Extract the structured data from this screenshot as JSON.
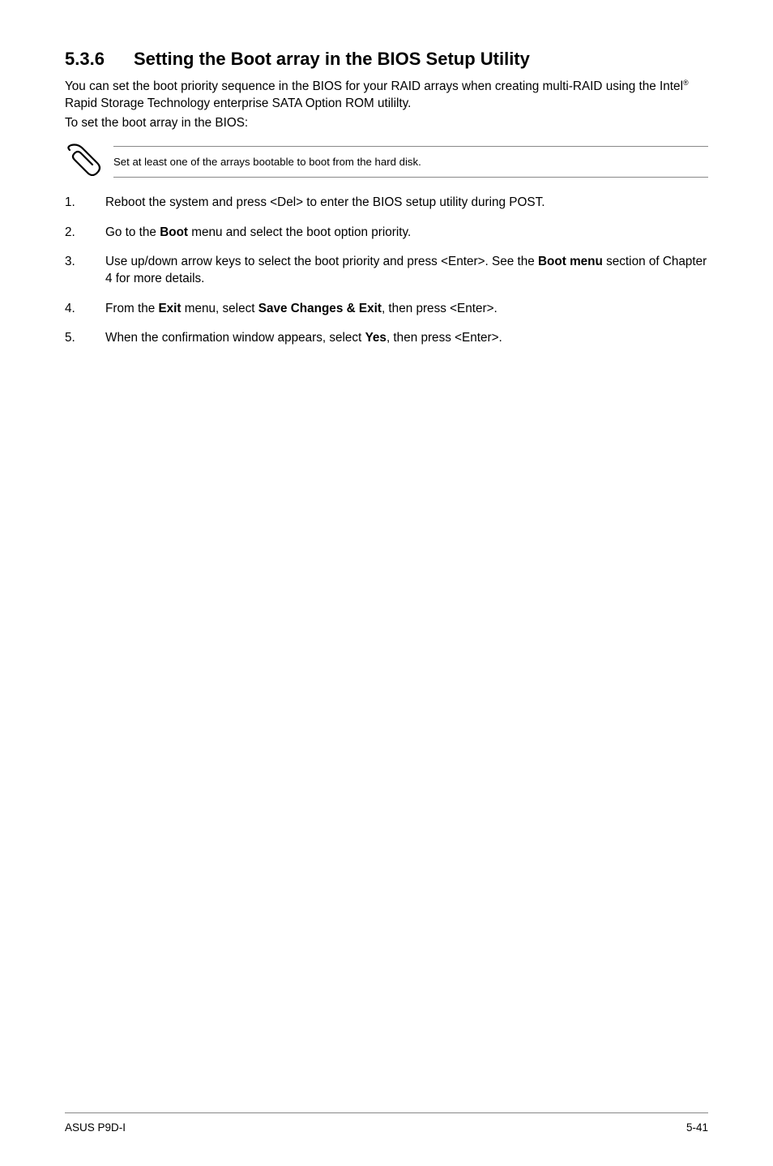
{
  "heading": {
    "number": "5.3.6",
    "title": "Setting the Boot array in the BIOS Setup Utility"
  },
  "intro": {
    "line1_pre": "You can set the boot priority sequence in the BIOS for your RAID arrays when creating multi-RAID using the Intel",
    "line1_post": " Rapid Storage Technology enterprise SATA Option ROM utililty.",
    "line2": "To set the boot array in the BIOS:"
  },
  "note": {
    "text": "Set at least one of the arrays bootable to boot from the hard disk."
  },
  "steps": [
    {
      "segments": [
        {
          "t": "Reboot the system and press <Del> to enter the BIOS setup utility during POST."
        }
      ]
    },
    {
      "segments": [
        {
          "t": "Go to the "
        },
        {
          "t": "Boot",
          "b": true
        },
        {
          "t": " menu and select the boot option priority."
        }
      ]
    },
    {
      "segments": [
        {
          "t": "Use up/down arrow keys to select the boot priority and press <Enter>. See the "
        },
        {
          "t": "Boot menu",
          "b": true
        },
        {
          "t": " section of Chapter 4 for more details."
        }
      ]
    },
    {
      "segments": [
        {
          "t": "From the "
        },
        {
          "t": "Exit",
          "b": true
        },
        {
          "t": " menu, select "
        },
        {
          "t": "Save Changes & Exit",
          "b": true
        },
        {
          "t": ", then press <Enter>."
        }
      ]
    },
    {
      "segments": [
        {
          "t": "When the confirmation window appears, select "
        },
        {
          "t": "Yes",
          "b": true
        },
        {
          "t": ", then press <Enter>."
        }
      ]
    }
  ],
  "footer": {
    "left": "ASUS P9D-I",
    "right": "5-41"
  },
  "icon": {
    "name": "paperclip-note-icon"
  }
}
